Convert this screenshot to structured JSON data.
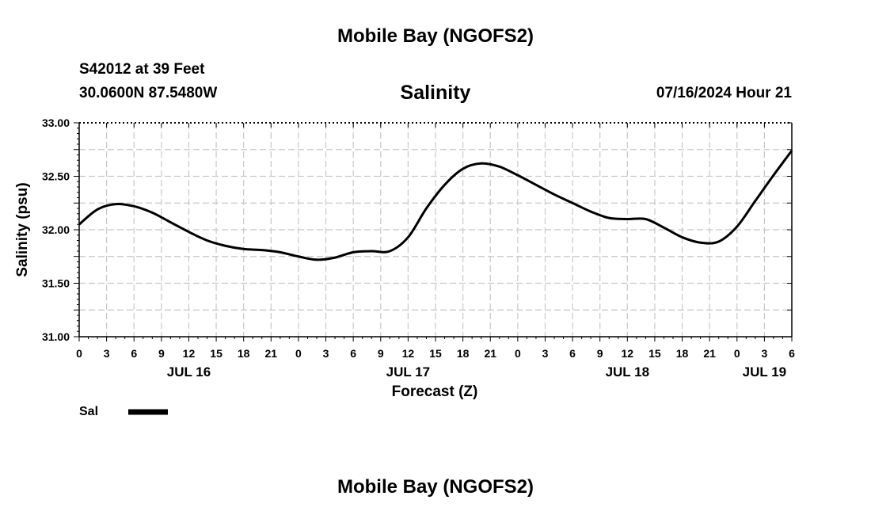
{
  "header": {
    "title": "Mobile Bay (NGOFS2)",
    "station": "S42012 at 39 Feet",
    "coords": "30.0600N  87.5480W",
    "subtitle": "Salinity",
    "timestamp": "07/16/2024 Hour 21"
  },
  "footer": {
    "title": "Mobile Bay (NGOFS2)"
  },
  "chart_data": {
    "type": "line",
    "ylabel": "Salinity (psu)",
    "xlabel": "Forecast (Z)",
    "ylim": [
      31.0,
      33.0
    ],
    "yticks": [
      "31.00",
      "31.50",
      "32.00",
      "32.50",
      "33.00"
    ],
    "xlim": [
      0,
      78
    ],
    "xtick_labels": [
      "0",
      "3",
      "6",
      "9",
      "12",
      "15",
      "18",
      "21",
      "0",
      "3",
      "6",
      "9",
      "12",
      "15",
      "18",
      "21",
      "0",
      "3",
      "6",
      "9",
      "12",
      "15",
      "18",
      "21",
      "0",
      "3",
      "6"
    ],
    "day_labels": [
      {
        "label": "JUL 16",
        "hour": 12
      },
      {
        "label": "JUL 17",
        "hour": 36
      },
      {
        "label": "JUL 18",
        "hour": 60
      },
      {
        "label": "JUL 19",
        "hour": 75
      }
    ],
    "grid": true,
    "legend": {
      "label": "Sal",
      "placement": "bottom-left"
    },
    "series": [
      {
        "name": "Sal",
        "color": "#000000",
        "x": [
          0,
          2,
          4,
          6,
          8,
          10,
          12,
          14,
          16,
          18,
          20,
          22,
          24,
          26,
          28,
          30,
          32,
          34,
          36,
          38,
          40,
          42,
          44,
          46,
          48,
          50,
          52,
          54,
          56,
          58,
          60,
          62,
          64,
          66,
          68,
          70,
          72,
          74,
          76,
          78
        ],
        "values": [
          32.05,
          32.19,
          32.24,
          32.22,
          32.16,
          32.07,
          31.98,
          31.9,
          31.85,
          31.82,
          31.81,
          31.79,
          31.75,
          31.72,
          31.74,
          31.79,
          31.8,
          31.8,
          31.93,
          32.2,
          32.42,
          32.57,
          32.62,
          32.59,
          32.51,
          32.42,
          32.33,
          32.25,
          32.17,
          32.11,
          32.1,
          32.1,
          32.02,
          31.93,
          31.88,
          31.89,
          32.03,
          32.27,
          32.51,
          32.74
        ]
      }
    ]
  }
}
